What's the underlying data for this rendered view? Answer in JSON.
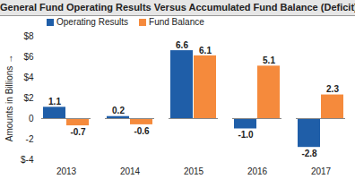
{
  "chart_data": {
    "type": "bar",
    "title": "General Fund Operating Results Versus Accumulated Fund Balance (Deficit)",
    "y_label": "Amounts in Billions",
    "categories": [
      "2013",
      "2014",
      "2015",
      "2016",
      "2017"
    ],
    "series": [
      {
        "name": "Operating Results",
        "color": "#1f5ea8",
        "values": [
          1.1,
          0.2,
          6.6,
          -1.0,
          -2.8
        ],
        "value_labels": [
          "1.1",
          "0.2",
          "6.6",
          "-1.0",
          "-2.8"
        ]
      },
      {
        "name": "Fund Balance",
        "color": "#f58a3c",
        "values": [
          -0.7,
          -0.6,
          6.1,
          5.1,
          2.3
        ]
      }
    ],
    "ylim": [
      -4,
      8
    ],
    "yticks": [
      {
        "value": -4,
        "label": "$-4"
      },
      -2,
      0,
      {
        "value": 2,
        "label": "$2"
      },
      {
        "value": 4,
        "label": "$4"
      },
      {
        "value": 6,
        "label": "$6"
      },
      {
        "value": 8,
        "label": "$8"
      }
    ],
    "grid": false,
    "legend": "top-left",
    "data_labels": true
  }
}
